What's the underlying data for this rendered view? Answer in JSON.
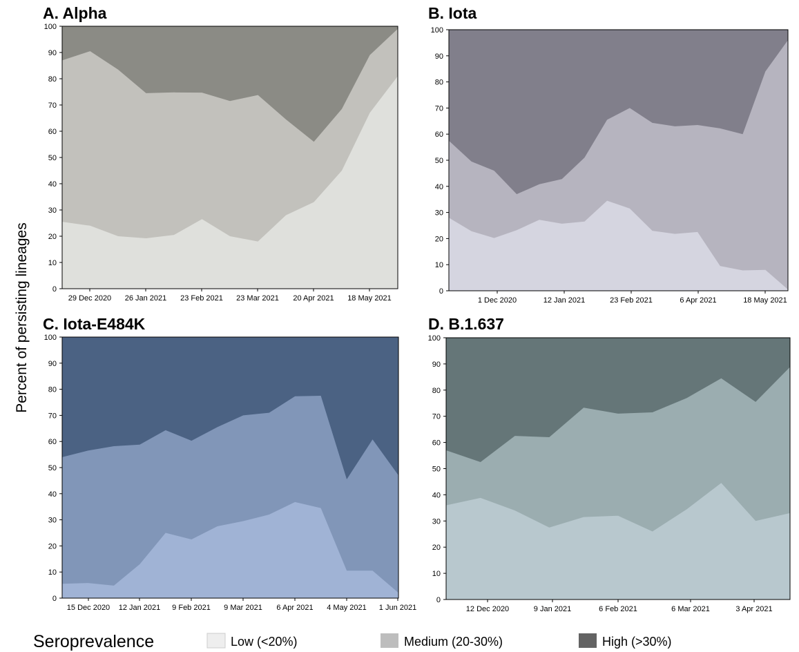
{
  "figure": {
    "ylabel": "Percent of persisting lineages",
    "legend": {
      "title": "Seroprevalence",
      "items": [
        {
          "label": "Low (<20%)",
          "color": "#eeeeee"
        },
        {
          "label": "Medium (20-30%)",
          "color": "#bdbdbd"
        },
        {
          "label": "High (>30%)",
          "color": "#636363"
        }
      ]
    }
  },
  "chart_data": [
    {
      "type": "area",
      "stacked": true,
      "title": "A.  Alpha",
      "ylim": [
        0,
        100
      ],
      "yticks": [
        0,
        10,
        20,
        30,
        40,
        50,
        60,
        70,
        80,
        90,
        100
      ],
      "xticks": [
        "29 Dec 2020",
        "26 Jan 2021",
        "23 Feb 2021",
        "23 Mar 2021",
        "20 Apr 2021",
        "18 May 2021"
      ],
      "colors": {
        "low": "#dfe0dc",
        "medium": "#c2c1bc",
        "high": "#8b8b85"
      },
      "low": [
        25.5,
        24,
        20,
        19.2,
        20.5,
        26.5,
        20,
        18,
        28,
        33,
        45,
        67,
        81
      ],
      "low_medium": [
        87,
        90.5,
        83.5,
        74.5,
        74.8,
        74.7,
        71.5,
        73.8,
        64.5,
        56,
        68.5,
        89,
        99
      ]
    },
    {
      "type": "area",
      "stacked": true,
      "title": "B.  Iota",
      "ylim": [
        0,
        100
      ],
      "yticks": [
        0,
        10,
        20,
        30,
        40,
        50,
        60,
        70,
        80,
        90,
        100
      ],
      "xticks": [
        "1 Dec 2020",
        "12 Jan 2021",
        "23 Feb 2021",
        "6 Apr 2021",
        "18 May 2021"
      ],
      "colors": {
        "low": "#d5d5e0",
        "medium": "#b6b4bf",
        "high": "#817f8b"
      },
      "low": [
        28,
        22.8,
        20.2,
        23.2,
        27.2,
        25.7,
        26.5,
        34.5,
        31.5,
        23,
        21.8,
        22.5,
        9.5,
        7.8,
        8,
        0.5
      ],
      "low_medium": [
        57.5,
        49.5,
        46,
        37,
        40.8,
        42.8,
        51,
        65.5,
        70,
        64.3,
        63,
        63.5,
        62.2,
        60,
        84,
        96
      ]
    },
    {
      "type": "area",
      "stacked": true,
      "title": "C.  Iota-E484K",
      "ylim": [
        0,
        100
      ],
      "yticks": [
        0,
        10,
        20,
        30,
        40,
        50,
        60,
        70,
        80,
        90,
        100
      ],
      "xticks": [
        "15 Dec 2020",
        "12 Jan 2021",
        "9 Feb 2021",
        "9 Mar 2021",
        "6 Apr 2021",
        "4 May 2021",
        "1 Jun 2021"
      ],
      "colors": {
        "low": "#a0b3d5",
        "medium": "#8196b8",
        "high": "#4b6283"
      },
      "low": [
        5.5,
        5.8,
        4.8,
        13,
        25,
        22.5,
        27.5,
        29.5,
        32,
        36.8,
        34.5,
        10.5,
        10.5,
        2
      ],
      "low_medium": [
        54,
        56.5,
        58.2,
        58.8,
        64.3,
        60.3,
        65.5,
        70,
        71,
        77.3,
        77.5,
        45.5,
        60.8,
        47
      ]
    },
    {
      "type": "area",
      "stacked": true,
      "title": "D.  B.1.637",
      "ylim": [
        0,
        100
      ],
      "yticks": [
        0,
        10,
        20,
        30,
        40,
        50,
        60,
        70,
        80,
        90,
        100
      ],
      "xticks": [
        "12 Dec 2020",
        "9 Jan 2021",
        "6 Feb 2021",
        "6 Mar 2021",
        "3 Apr 2021"
      ],
      "colors": {
        "low": "#b8c8ce",
        "medium": "#9badb0",
        "high": "#657678"
      },
      "low": [
        36,
        38.8,
        34,
        27.5,
        31.5,
        32,
        26,
        34.5,
        44.5,
        30,
        33
      ],
      "low_medium": [
        57,
        52.5,
        62.5,
        62,
        73.3,
        71,
        71.5,
        77,
        84.5,
        75.5,
        88.8
      ]
    }
  ]
}
